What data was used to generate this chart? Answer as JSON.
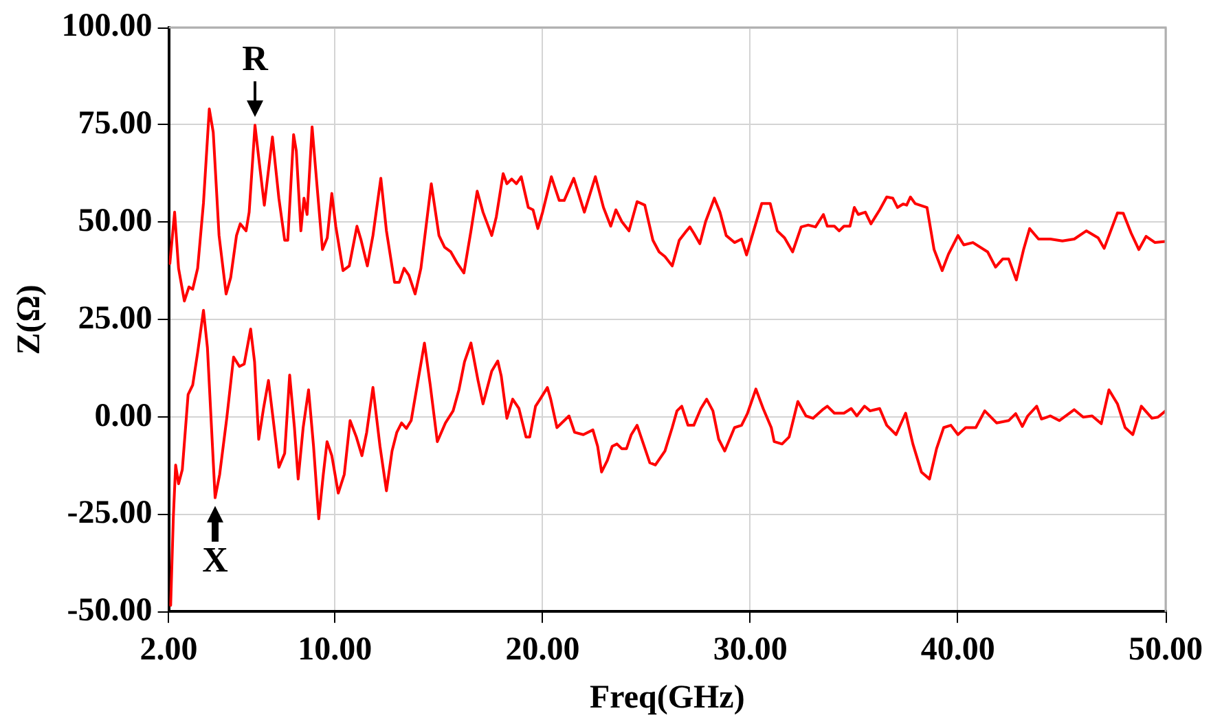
{
  "chart_data": {
    "type": "line",
    "xlabel": "Freq(GHz)",
    "ylabel": "Z(Ω)",
    "xlim": [
      2,
      50
    ],
    "xticks": [
      {
        "value": 2,
        "label": "2.00"
      },
      {
        "value": 10,
        "label": "10.00"
      },
      {
        "value": 20,
        "label": "20.00"
      },
      {
        "value": 30,
        "label": "30.00"
      },
      {
        "value": 40,
        "label": "40.00"
      },
      {
        "value": 50,
        "label": "50.00"
      }
    ],
    "ylim": [
      -50,
      100
    ],
    "yticks": [
      {
        "value": -50,
        "label": "-50.00"
      },
      {
        "value": -25,
        "label": "-25.00"
      },
      {
        "value": 0,
        "label": "0.00"
      },
      {
        "value": 25,
        "label": "25.00"
      },
      {
        "value": 50,
        "label": "50.00"
      },
      {
        "value": 75,
        "label": "75.00"
      },
      {
        "value": 100,
        "label": "100.00"
      }
    ],
    "grid": true,
    "legend": false,
    "marker": "none",
    "line_style": "solid",
    "annotations": [
      {
        "text": "R",
        "x": 6.15,
        "y": 74.9
      },
      {
        "text": "X",
        "x": 4.23,
        "y": -20.7
      }
    ],
    "series": [
      {
        "color": "#ff0000",
        "x": [
          2.05,
          2.28,
          2.47,
          2.75,
          2.97,
          3.15,
          3.39,
          3.67,
          3.95,
          4.14,
          4.42,
          4.76,
          4.98,
          5.26,
          5.44,
          5.72,
          5.87,
          6.15,
          6.37,
          6.6,
          6.99,
          7.3,
          7.58,
          7.73,
          8.01,
          8.14,
          8.36,
          8.51,
          8.66,
          8.9,
          9.11,
          9.4,
          9.63,
          9.85,
          10.04,
          10.39,
          10.69,
          11.06,
          11.26,
          11.56,
          11.83,
          12.21,
          12.48,
          12.87,
          13.1,
          13.33,
          13.56,
          13.86,
          14.14,
          14.64,
          15.01,
          15.28,
          15.58,
          15.9,
          16.21,
          16.55,
          16.85,
          17.13,
          17.55,
          17.77,
          18.1,
          18.28,
          18.51,
          18.74,
          18.97,
          19.31,
          19.54,
          19.77,
          20.0,
          20.42,
          20.8,
          21.04,
          21.5,
          22.01,
          22.54,
          22.93,
          23.28,
          23.53,
          23.81,
          24.16,
          24.55,
          24.92,
          25.31,
          25.61,
          25.89,
          26.24,
          26.58,
          26.93,
          27.09,
          27.28,
          27.57,
          27.85,
          28.27,
          28.54,
          28.84,
          29.24,
          29.58,
          29.82,
          30.16,
          30.55,
          30.96,
          31.3,
          31.65,
          32.04,
          32.45,
          32.79,
          33.14,
          33.52,
          33.71,
          34.05,
          34.28,
          34.51,
          34.8,
          35.01,
          35.2,
          35.54,
          35.81,
          36.23,
          36.57,
          36.86,
          37.09,
          37.36,
          37.53,
          37.71,
          37.94,
          38.51,
          38.85,
          39.24,
          39.54,
          40.0,
          40.28,
          40.72,
          41.43,
          41.81,
          42.16,
          42.44,
          42.81,
          43.16,
          43.45,
          43.88,
          44.45,
          45.03,
          45.6,
          46.18,
          46.75,
          47.04,
          47.68,
          47.96,
          48.34,
          48.71,
          49.06,
          49.49,
          50.0
        ],
        "values": [
          39.4,
          52.6,
          38.2,
          29.8,
          33.4,
          32.8,
          38.2,
          55.0,
          79.1,
          73.1,
          46.6,
          31.6,
          35.8,
          46.6,
          49.6,
          47.8,
          52.6,
          74.9,
          64.7,
          54.4,
          71.9,
          56.2,
          45.4,
          45.4,
          72.5,
          68.3,
          47.8,
          56.2,
          52.0,
          74.5,
          61.1,
          43.0,
          46.0,
          57.4,
          49.0,
          37.6,
          38.8,
          49.0,
          45.4,
          38.8,
          46.6,
          61.3,
          47.8,
          34.6,
          34.6,
          38.2,
          36.4,
          31.6,
          38.2,
          59.9,
          46.6,
          43.6,
          42.4,
          39.4,
          37.0,
          47.8,
          58.0,
          52.6,
          46.6,
          51.4,
          62.5,
          59.9,
          61.1,
          59.9,
          61.7,
          53.8,
          53.2,
          48.4,
          52.6,
          61.7,
          55.6,
          55.6,
          61.3,
          52.6,
          61.7,
          53.8,
          49.0,
          53.2,
          50.2,
          47.8,
          55.3,
          54.4,
          45.4,
          42.4,
          41.2,
          38.8,
          45.4,
          47.8,
          48.8,
          47.2,
          44.5,
          50.2,
          56.2,
          52.6,
          46.6,
          44.8,
          45.7,
          41.6,
          47.8,
          54.8,
          54.8,
          47.8,
          46.0,
          42.4,
          48.8,
          49.3,
          48.8,
          52.0,
          49.0,
          49.0,
          47.8,
          49.0,
          49.0,
          53.8,
          52.0,
          52.6,
          49.6,
          53.2,
          56.5,
          56.2,
          53.8,
          54.7,
          54.4,
          56.5,
          54.8,
          53.8,
          43.0,
          37.6,
          41.8,
          46.6,
          44.2,
          44.8,
          42.4,
          38.5,
          40.6,
          40.6,
          35.2,
          43.0,
          48.4,
          45.7,
          45.7,
          45.2,
          45.7,
          47.8,
          46.0,
          43.3,
          52.4,
          52.3,
          47.2,
          43.0,
          46.4,
          44.8,
          45.1
        ]
      },
      {
        "color": "#ff0000",
        "x": [
          2.09,
          2.22,
          2.33,
          2.47,
          2.65,
          2.93,
          3.15,
          3.39,
          3.67,
          3.86,
          4.23,
          4.45,
          4.79,
          5.12,
          5.4,
          5.63,
          5.94,
          6.13,
          6.33,
          6.56,
          6.8,
          7.02,
          7.3,
          7.58,
          7.82,
          8.05,
          8.23,
          8.47,
          8.73,
          8.97,
          9.22,
          9.44,
          9.62,
          9.85,
          10.16,
          10.45,
          10.73,
          11.03,
          11.3,
          11.53,
          11.83,
          12.17,
          12.48,
          12.75,
          12.98,
          13.21,
          13.44,
          13.67,
          14.31,
          14.59,
          14.93,
          15.32,
          15.69,
          15.97,
          16.24,
          16.55,
          16.89,
          17.13,
          17.55,
          17.84,
          18.01,
          18.28,
          18.56,
          18.86,
          19.2,
          19.38,
          19.66,
          19.88,
          20.23,
          20.39,
          20.69,
          21.04,
          21.27,
          21.54,
          21.96,
          22.42,
          22.65,
          22.84,
          23.12,
          23.35,
          23.58,
          23.81,
          24.04,
          24.27,
          24.55,
          24.74,
          25.16,
          25.43,
          25.89,
          26.24,
          26.47,
          26.7,
          27.0,
          27.28,
          27.62,
          27.9,
          28.2,
          28.48,
          28.77,
          29.24,
          29.58,
          29.86,
          30.27,
          30.62,
          31.01,
          31.15,
          31.53,
          31.87,
          32.29,
          32.68,
          33.02,
          33.48,
          33.71,
          34.05,
          34.51,
          34.86,
          35.13,
          35.5,
          35.77,
          36.23,
          36.57,
          37.02,
          37.48,
          37.83,
          38.24,
          38.63,
          38.97,
          39.31,
          39.66,
          40.0,
          40.37,
          40.86,
          41.29,
          41.86,
          42.44,
          42.78,
          43.1,
          43.36,
          43.79,
          44.02,
          44.45,
          44.88,
          45.6,
          46.03,
          46.46,
          46.9,
          47.27,
          47.68,
          48.05,
          48.42,
          48.83,
          49.34,
          49.63,
          50.0
        ],
        "values": [
          -48.3,
          -25.5,
          -12.3,
          -17.1,
          -13.5,
          5.8,
          8.2,
          16.6,
          27.4,
          17.8,
          -20.7,
          -14.7,
          -0.3,
          15.4,
          13.0,
          13.6,
          22.6,
          14.2,
          -5.7,
          2.2,
          9.4,
          -0.3,
          -12.9,
          -9.3,
          10.8,
          -2.7,
          -15.9,
          -2.7,
          7.0,
          -7.5,
          -26.1,
          -14.7,
          -6.3,
          -9.9,
          -19.5,
          -14.7,
          -0.9,
          -5.1,
          -9.9,
          -3.9,
          7.6,
          -7.5,
          -18.9,
          -8.7,
          -3.9,
          -1.5,
          -2.9,
          -0.9,
          19.0,
          8.2,
          -6.3,
          -1.5,
          1.6,
          7.0,
          14.2,
          19.0,
          9.4,
          3.4,
          11.8,
          14.4,
          10.5,
          -0.3,
          4.6,
          2.2,
          -5.1,
          -5.1,
          2.8,
          4.6,
          7.6,
          4.6,
          -2.7,
          -0.9,
          0.3,
          -3.9,
          -4.5,
          -3.3,
          -7.5,
          -14.1,
          -11.1,
          -7.5,
          -6.9,
          -8.1,
          -8.1,
          -4.5,
          -2.1,
          -5.1,
          -11.7,
          -12.3,
          -8.7,
          -2.7,
          1.6,
          2.8,
          -2.1,
          -2.1,
          2.2,
          4.6,
          1.6,
          -5.7,
          -8.7,
          -2.7,
          -2.1,
          0.9,
          7.2,
          2.2,
          -2.7,
          -6.3,
          -6.9,
          -5.1,
          4.0,
          0.3,
          -0.3,
          1.9,
          2.8,
          1.0,
          1.0,
          2.2,
          0.3,
          2.8,
          1.6,
          2.2,
          -2.1,
          -4.5,
          1.0,
          -6.9,
          -14.1,
          -15.9,
          -8.1,
          -2.7,
          -2.1,
          -4.5,
          -2.7,
          -2.7,
          1.6,
          -1.5,
          -0.9,
          0.9,
          -2.4,
          0.3,
          2.8,
          -0.5,
          0.3,
          -0.9,
          1.9,
          0.0,
          0.3,
          -1.7,
          7.0,
          3.4,
          -2.7,
          -4.5,
          2.8,
          -0.3,
          0.0,
          1.6
        ]
      }
    ]
  }
}
